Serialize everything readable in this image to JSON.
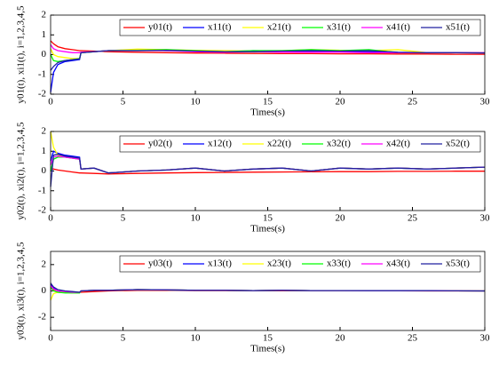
{
  "chart_data": [
    {
      "type": "line",
      "xlabel": "Times(s)",
      "ylabel": "y01(t), xi1(t), i=1,2,3,4,5",
      "legend": "upper right",
      "xlim": [
        0,
        30
      ],
      "ylim": [
        -2,
        2
      ],
      "xticks": [
        0,
        5,
        10,
        15,
        20,
        25,
        30
      ],
      "yticks": [
        -2,
        -1,
        0,
        1,
        2
      ],
      "x": [
        0,
        0.2,
        0.5,
        1,
        1.5,
        2,
        2.1,
        3,
        4,
        6,
        8,
        10,
        12,
        14,
        16,
        18,
        20,
        22,
        24,
        26,
        28,
        30
      ],
      "series": [
        {
          "name": "y01(t)",
          "color": "#ff0000",
          "values": [
            0.7,
            0.55,
            0.4,
            0.3,
            0.25,
            0.2,
            0.2,
            0.18,
            0.15,
            0.12,
            0.1,
            0.08,
            0.07,
            0.06,
            0.05,
            0.05,
            0.04,
            0.04,
            0.03,
            0.03,
            0.02,
            0.02
          ]
        },
        {
          "name": "x11(t)",
          "color": "#0000ff",
          "values": [
            -1.9,
            -0.9,
            -0.5,
            -0.35,
            -0.3,
            -0.25,
            0.1,
            0.15,
            0.2,
            0.25,
            0.2,
            0.2,
            0.15,
            0.2,
            0.18,
            0.15,
            0.15,
            0.15,
            0.1,
            0.1,
            0.1,
            0.1
          ]
        },
        {
          "name": "x21(t)",
          "color": "#ffff00",
          "values": [
            0.3,
            0.0,
            -0.1,
            -0.15,
            -0.2,
            -0.2,
            0.1,
            0.15,
            0.2,
            0.28,
            0.25,
            0.22,
            0.2,
            0.18,
            0.2,
            0.25,
            0.22,
            0.2,
            0.25,
            0.1,
            0.1,
            0.1
          ]
        },
        {
          "name": "x31(t)",
          "color": "#00ff00",
          "values": [
            0.0,
            -0.3,
            -0.35,
            -0.3,
            -0.25,
            -0.2,
            0.1,
            0.15,
            0.2,
            0.22,
            0.25,
            0.2,
            0.15,
            0.2,
            0.2,
            0.25,
            0.2,
            0.25,
            0.1,
            0.1,
            0.1,
            0.1
          ]
        },
        {
          "name": "x41(t)",
          "color": "#ff00ff",
          "values": [
            0.5,
            0.3,
            0.2,
            0.15,
            0.1,
            0.1,
            0.12,
            0.15,
            0.2,
            0.2,
            0.2,
            0.15,
            0.12,
            0.15,
            0.12,
            0.12,
            0.12,
            0.1,
            0.1,
            0.1,
            0.1,
            0.1
          ]
        },
        {
          "name": "x51(t)",
          "color": "#2020a0",
          "values": [
            -0.8,
            -0.6,
            -0.4,
            -0.3,
            -0.25,
            -0.22,
            0.1,
            0.15,
            0.2,
            0.2,
            0.22,
            0.18,
            0.15,
            0.15,
            0.18,
            0.2,
            0.18,
            0.2,
            0.12,
            0.1,
            0.1,
            0.08
          ]
        }
      ]
    },
    {
      "type": "line",
      "xlabel": "Times(s)",
      "ylabel": "y02(t), xi2(t), i=1,2,3,4,5",
      "legend": "upper right",
      "xlim": [
        0,
        30
      ],
      "ylim": [
        -2,
        2
      ],
      "xticks": [
        0,
        5,
        10,
        15,
        20,
        25,
        30
      ],
      "yticks": [
        -2,
        -1,
        0,
        1,
        2
      ],
      "x": [
        0,
        0.2,
        0.5,
        1,
        1.5,
        2,
        2.1,
        3,
        4,
        6,
        8,
        10,
        12,
        14,
        16,
        18,
        20,
        22,
        24,
        26,
        28,
        30
      ],
      "series": [
        {
          "name": "y02(t)",
          "color": "#ff0000",
          "values": [
            0.1,
            0.1,
            0.05,
            0.0,
            -0.05,
            -0.1,
            -0.1,
            -0.12,
            -0.15,
            -0.12,
            -0.1,
            -0.08,
            -0.07,
            -0.06,
            -0.05,
            -0.04,
            -0.03,
            -0.03,
            -0.02,
            -0.02,
            -0.01,
            -0.01
          ]
        },
        {
          "name": "x12(t)",
          "color": "#0000ff",
          "values": [
            0.5,
            1.0,
            0.9,
            0.8,
            0.75,
            0.7,
            0.1,
            0.15,
            -0.1,
            0.0,
            0.05,
            0.15,
            0.0,
            0.1,
            0.15,
            0.0,
            0.15,
            0.1,
            0.15,
            0.1,
            0.15,
            0.2
          ]
        },
        {
          "name": "x22(t)",
          "color": "#ffff00",
          "values": [
            2.0,
            1.2,
            0.8,
            0.7,
            0.65,
            0.6,
            0.1,
            0.15,
            -0.1,
            0.0,
            0.05,
            0.15,
            0.0,
            0.1,
            0.15,
            0.0,
            0.15,
            0.1,
            0.15,
            0.1,
            0.15,
            0.2
          ]
        },
        {
          "name": "x32(t)",
          "color": "#00ff00",
          "values": [
            0.0,
            0.6,
            0.7,
            0.7,
            0.65,
            0.6,
            0.1,
            0.15,
            -0.1,
            0.0,
            0.05,
            0.15,
            0.0,
            0.1,
            0.15,
            0.0,
            0.15,
            0.1,
            0.15,
            0.1,
            0.15,
            0.2
          ]
        },
        {
          "name": "x42(t)",
          "color": "#ff00ff",
          "values": [
            0.3,
            0.7,
            0.75,
            0.7,
            0.65,
            0.6,
            0.1,
            0.15,
            -0.1,
            0.0,
            0.05,
            0.15,
            0.0,
            0.1,
            0.15,
            0.0,
            0.15,
            0.1,
            0.15,
            0.1,
            0.15,
            0.2
          ]
        },
        {
          "name": "x52(t)",
          "color": "#2020a0",
          "values": [
            -0.8,
            0.8,
            0.85,
            0.75,
            0.7,
            0.65,
            0.1,
            0.15,
            -0.1,
            0.0,
            0.05,
            0.15,
            0.0,
            0.1,
            0.15,
            0.0,
            0.15,
            0.1,
            0.15,
            0.1,
            0.15,
            0.2
          ]
        }
      ]
    },
    {
      "type": "line",
      "xlabel": "Times(s)",
      "ylabel": "y03(t), xi3(t), i=1,2,3,4,5",
      "legend": "upper right",
      "xlim": [
        0,
        30
      ],
      "ylim": [
        -3,
        3
      ],
      "xticks": [
        0,
        5,
        10,
        15,
        20,
        25,
        30
      ],
      "yticks": [
        -2,
        0,
        2
      ],
      "x": [
        0,
        0.2,
        0.5,
        1,
        1.5,
        2,
        2.1,
        3,
        4,
        6,
        8,
        10,
        12,
        14,
        16,
        18,
        20,
        22,
        24,
        26,
        28,
        30
      ],
      "series": [
        {
          "name": "y03(t)",
          "color": "#ff0000",
          "values": [
            0.2,
            0.1,
            0.0,
            -0.05,
            -0.1,
            -0.1,
            -0.1,
            -0.05,
            0.0,
            0.05,
            0.05,
            0.03,
            0.03,
            0.02,
            0.02,
            0.02,
            0.01,
            0.01,
            0.01,
            0.0,
            0.0,
            0.0
          ]
        },
        {
          "name": "x13(t)",
          "color": "#0000ff",
          "values": [
            0.5,
            0.2,
            0.0,
            -0.1,
            -0.15,
            -0.15,
            0.0,
            0.05,
            0.05,
            0.1,
            0.08,
            0.05,
            0.05,
            0.03,
            0.05,
            0.03,
            0.03,
            0.02,
            0.02,
            0.02,
            0.01,
            0.0
          ]
        },
        {
          "name": "x23(t)",
          "color": "#ffff00",
          "values": [
            -0.7,
            -0.2,
            -0.1,
            -0.12,
            -0.15,
            -0.15,
            0.0,
            0.05,
            0.05,
            0.1,
            0.08,
            0.05,
            0.05,
            0.03,
            0.05,
            0.03,
            0.03,
            0.02,
            0.02,
            0.02,
            0.01,
            0.0
          ]
        },
        {
          "name": "x33(t)",
          "color": "#00ff00",
          "values": [
            0.3,
            0.0,
            -0.1,
            -0.15,
            -0.15,
            -0.15,
            0.0,
            0.05,
            0.05,
            0.1,
            0.08,
            0.05,
            0.05,
            0.03,
            0.05,
            0.03,
            0.03,
            0.02,
            0.02,
            0.02,
            0.01,
            0.0
          ]
        },
        {
          "name": "x43(t)",
          "color": "#ff00ff",
          "values": [
            0.4,
            0.15,
            0.0,
            -0.05,
            -0.1,
            -0.1,
            0.0,
            0.05,
            0.05,
            0.1,
            0.08,
            0.05,
            0.05,
            0.03,
            0.05,
            0.03,
            0.03,
            0.02,
            0.02,
            0.02,
            0.01,
            0.0
          ]
        },
        {
          "name": "x53(t)",
          "color": "#2020a0",
          "values": [
            0.6,
            0.3,
            0.1,
            0.0,
            -0.05,
            -0.1,
            0.0,
            0.05,
            0.05,
            0.1,
            0.08,
            0.05,
            0.05,
            0.03,
            0.05,
            0.03,
            0.03,
            0.02,
            0.02,
            0.02,
            0.01,
            0.0
          ]
        }
      ]
    }
  ]
}
